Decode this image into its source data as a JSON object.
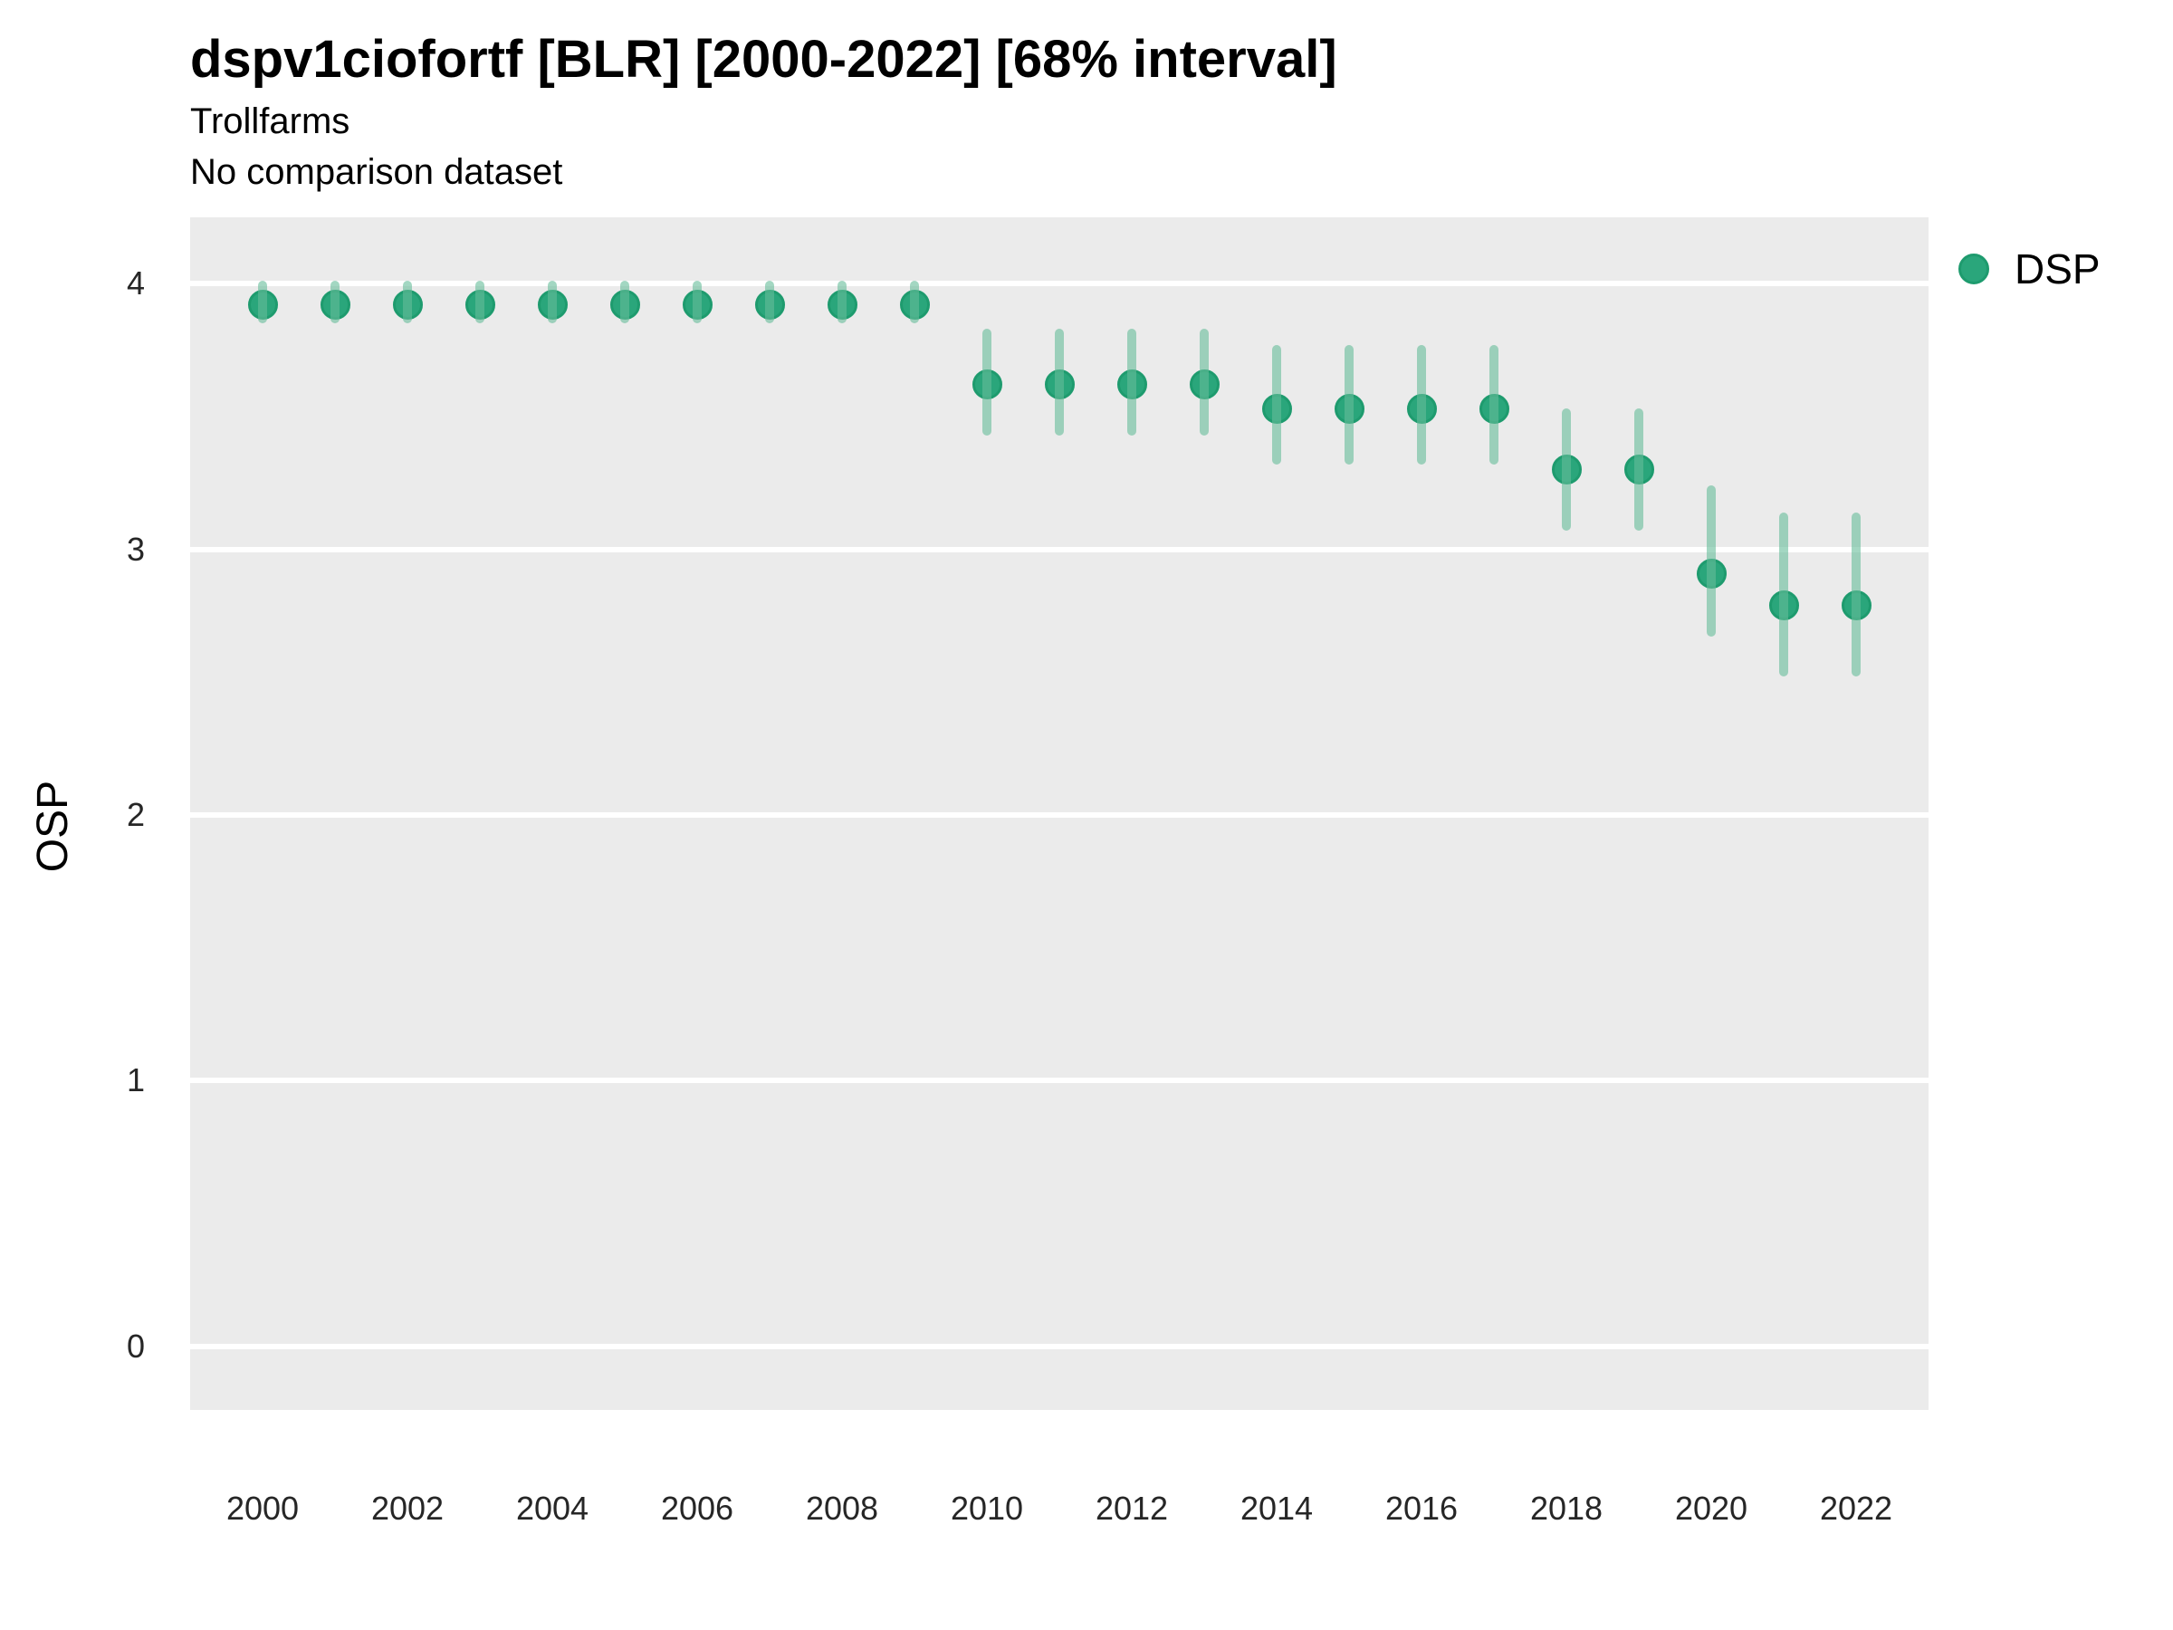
{
  "header": {
    "title": "dspv1ciofortf [BLR] [2000-2022] [68% interval]",
    "subtitle": "Trollfarms",
    "subtitle2": "No comparison dataset"
  },
  "legend": {
    "entries": [
      {
        "label": "DSP",
        "color": "#2aa67b"
      }
    ],
    "position": "right"
  },
  "colors": {
    "marker_fill": "#2aa67b",
    "marker_stroke": "#1e9b6e",
    "error_bar": "rgba(101,188,153,0.6)",
    "panel_background": "#ebebeb",
    "gridline": "#ffffff",
    "tick_text": "#262626"
  },
  "chart_data": {
    "type": "scatter",
    "title": "dspv1ciofortf [BLR] [2000-2022] [68% interval]",
    "subtitle": "Trollfarms",
    "note": "No comparison dataset",
    "xlabel": "",
    "ylabel": "OSP",
    "interval": "68%",
    "grid": "horizontal-major-only",
    "legend_position": "right",
    "xlim": [
      1999,
      2023
    ],
    "ylim": [
      -0.24,
      4.25
    ],
    "xticks": [
      2000,
      2002,
      2004,
      2006,
      2008,
      2010,
      2012,
      2014,
      2016,
      2018,
      2020,
      2022
    ],
    "yticks": [
      0,
      1,
      2,
      3,
      4
    ],
    "series": [
      {
        "name": "DSP",
        "points": [
          {
            "year": 2000,
            "mid": 3.92,
            "lo": 3.85,
            "hi": 4.01
          },
          {
            "year": 2001,
            "mid": 3.92,
            "lo": 3.85,
            "hi": 4.01
          },
          {
            "year": 2002,
            "mid": 3.92,
            "lo": 3.85,
            "hi": 4.01
          },
          {
            "year": 2003,
            "mid": 3.92,
            "lo": 3.85,
            "hi": 4.01
          },
          {
            "year": 2004,
            "mid": 3.92,
            "lo": 3.85,
            "hi": 4.01
          },
          {
            "year": 2005,
            "mid": 3.92,
            "lo": 3.85,
            "hi": 4.01
          },
          {
            "year": 2006,
            "mid": 3.92,
            "lo": 3.85,
            "hi": 4.01
          },
          {
            "year": 2007,
            "mid": 3.92,
            "lo": 3.85,
            "hi": 4.01
          },
          {
            "year": 2008,
            "mid": 3.92,
            "lo": 3.85,
            "hi": 4.01
          },
          {
            "year": 2009,
            "mid": 3.92,
            "lo": 3.85,
            "hi": 4.01
          },
          {
            "year": 2010,
            "mid": 3.62,
            "lo": 3.43,
            "hi": 3.83
          },
          {
            "year": 2011,
            "mid": 3.62,
            "lo": 3.43,
            "hi": 3.83
          },
          {
            "year": 2012,
            "mid": 3.62,
            "lo": 3.43,
            "hi": 3.83
          },
          {
            "year": 2013,
            "mid": 3.62,
            "lo": 3.43,
            "hi": 3.83
          },
          {
            "year": 2014,
            "mid": 3.53,
            "lo": 3.32,
            "hi": 3.77
          },
          {
            "year": 2015,
            "mid": 3.53,
            "lo": 3.32,
            "hi": 3.77
          },
          {
            "year": 2016,
            "mid": 3.53,
            "lo": 3.32,
            "hi": 3.77
          },
          {
            "year": 2017,
            "mid": 3.53,
            "lo": 3.32,
            "hi": 3.77
          },
          {
            "year": 2018,
            "mid": 3.3,
            "lo": 3.07,
            "hi": 3.53
          },
          {
            "year": 2019,
            "mid": 3.3,
            "lo": 3.07,
            "hi": 3.53
          },
          {
            "year": 2020,
            "mid": 2.91,
            "lo": 2.67,
            "hi": 3.24
          },
          {
            "year": 2021,
            "mid": 2.79,
            "lo": 2.52,
            "hi": 3.14
          },
          {
            "year": 2022,
            "mid": 2.79,
            "lo": 2.52,
            "hi": 3.14
          }
        ]
      }
    ]
  }
}
